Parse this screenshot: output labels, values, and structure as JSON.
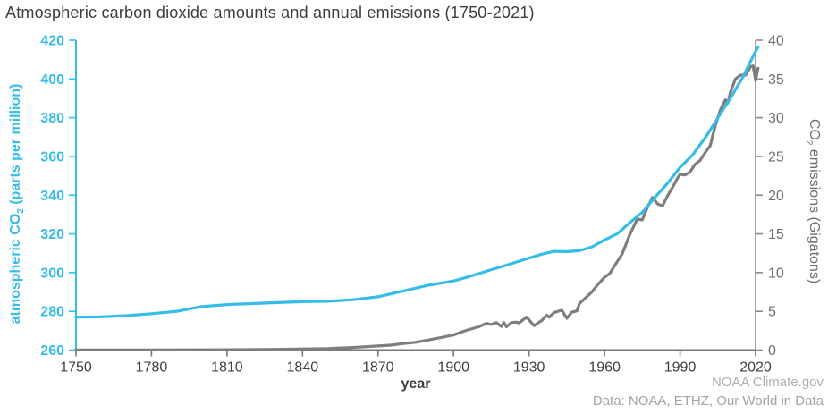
{
  "title": "Atmospheric carbon dioxide amounts and annual emissions (1750-2021)",
  "footer": {
    "source1": "NOAA Climate.gov",
    "source2": "Data: NOAA, ETHZ, Our World in Data"
  },
  "colors": {
    "cyan": "#35bce8",
    "gray_line": "#7e7e7e",
    "right_axis": "#8a8a8a",
    "bottom_axis": "#777777",
    "right_tick_text": "#6e6e6e",
    "x_tick_text": "#3f3f3f",
    "title_text": "#3d3d3d",
    "footer_text": "#aeaeae"
  },
  "chart_data": {
    "type": "line",
    "title": "Atmospheric carbon dioxide amounts and annual emissions (1750-2021)",
    "xlabel": "year",
    "grid": false,
    "legend": "none",
    "x_axis": {
      "ticks": [
        1750,
        1780,
        1810,
        1840,
        1870,
        1900,
        1930,
        1960,
        1990,
        2020
      ],
      "range": [
        1750,
        2021
      ]
    },
    "left_axis": {
      "label_prefix": "atmospheric CO",
      "label_sub": "2",
      "label_suffix": " (parts per million)",
      "ticks": [
        260,
        280,
        300,
        320,
        340,
        360,
        380,
        400,
        420
      ],
      "range": [
        260,
        420
      ]
    },
    "right_axis": {
      "label_prefix": "CO",
      "label_sub": "2",
      "label_suffix": " emissions (Gigatons)",
      "ticks": [
        0,
        5,
        10,
        15,
        20,
        25,
        30,
        35,
        40
      ],
      "range": [
        0,
        40
      ]
    },
    "series": [
      {
        "name": "co2_emissions_gigatons",
        "axis": "right",
        "color": "#7e7e7e",
        "points": [
          [
            1750,
            0.01
          ],
          [
            1775,
            0.02
          ],
          [
            1800,
            0.03
          ],
          [
            1825,
            0.07
          ],
          [
            1850,
            0.2
          ],
          [
            1860,
            0.34
          ],
          [
            1870,
            0.53
          ],
          [
            1875,
            0.64
          ],
          [
            1880,
            0.84
          ],
          [
            1885,
            1.0
          ],
          [
            1890,
            1.3
          ],
          [
            1895,
            1.6
          ],
          [
            1900,
            1.95
          ],
          [
            1905,
            2.54
          ],
          [
            1910,
            3.0
          ],
          [
            1913,
            3.45
          ],
          [
            1915,
            3.3
          ],
          [
            1917,
            3.55
          ],
          [
            1919,
            3.05
          ],
          [
            1920,
            3.55
          ],
          [
            1921,
            3.0
          ],
          [
            1923,
            3.55
          ],
          [
            1925,
            3.6
          ],
          [
            1926,
            3.5
          ],
          [
            1929,
            4.25
          ],
          [
            1932,
            3.15
          ],
          [
            1935,
            3.8
          ],
          [
            1937,
            4.5
          ],
          [
            1938,
            4.25
          ],
          [
            1940,
            4.85
          ],
          [
            1943,
            5.15
          ],
          [
            1945,
            4.1
          ],
          [
            1947,
            4.9
          ],
          [
            1949,
            5.05
          ],
          [
            1950,
            6.0
          ],
          [
            1952,
            6.6
          ],
          [
            1955,
            7.5
          ],
          [
            1957,
            8.35
          ],
          [
            1960,
            9.4
          ],
          [
            1962,
            9.85
          ],
          [
            1965,
            11.4
          ],
          [
            1967,
            12.4
          ],
          [
            1970,
            14.9
          ],
          [
            1973,
            16.9
          ],
          [
            1975,
            16.8
          ],
          [
            1977,
            18.4
          ],
          [
            1979,
            19.7
          ],
          [
            1981,
            18.9
          ],
          [
            1983,
            18.6
          ],
          [
            1985,
            19.9
          ],
          [
            1987,
            21.0
          ],
          [
            1989,
            22.2
          ],
          [
            1990,
            22.7
          ],
          [
            1992,
            22.6
          ],
          [
            1994,
            23.0
          ],
          [
            1996,
            24.0
          ],
          [
            1998,
            24.5
          ],
          [
            2000,
            25.5
          ],
          [
            2002,
            26.4
          ],
          [
            2004,
            29.0
          ],
          [
            2006,
            31.0
          ],
          [
            2008,
            32.3
          ],
          [
            2009,
            31.9
          ],
          [
            2010,
            33.3
          ],
          [
            2012,
            35.0
          ],
          [
            2014,
            35.5
          ],
          [
            2016,
            35.5
          ],
          [
            2018,
            36.6
          ],
          [
            2019,
            36.7
          ],
          [
            2020,
            34.8
          ],
          [
            2021,
            36.4
          ]
        ]
      },
      {
        "name": "atmospheric_co2_ppm",
        "axis": "left",
        "color": "#35bce8",
        "points": [
          [
            1750,
            277
          ],
          [
            1760,
            277.2
          ],
          [
            1770,
            277.8
          ],
          [
            1780,
            278.8
          ],
          [
            1790,
            280
          ],
          [
            1800,
            282.5
          ],
          [
            1810,
            283.5
          ],
          [
            1820,
            284
          ],
          [
            1830,
            284.5
          ],
          [
            1840,
            285
          ],
          [
            1850,
            285.2
          ],
          [
            1860,
            286
          ],
          [
            1870,
            287.5
          ],
          [
            1880,
            290.5
          ],
          [
            1890,
            293.5
          ],
          [
            1900,
            295.7
          ],
          [
            1905,
            297.5
          ],
          [
            1910,
            299.5
          ],
          [
            1915,
            301.5
          ],
          [
            1920,
            303.4
          ],
          [
            1925,
            305.5
          ],
          [
            1930,
            307.5
          ],
          [
            1935,
            309.5
          ],
          [
            1940,
            311
          ],
          [
            1945,
            310.8
          ],
          [
            1950,
            311.3
          ],
          [
            1955,
            313.3
          ],
          [
            1960,
            316.9
          ],
          [
            1965,
            320
          ],
          [
            1970,
            325.7
          ],
          [
            1975,
            331.1
          ],
          [
            1980,
            338.8
          ],
          [
            1985,
            346.1
          ],
          [
            1990,
            354.4
          ],
          [
            1995,
            360.8
          ],
          [
            2000,
            369.6
          ],
          [
            2005,
            379.9
          ],
          [
            2010,
            390.1
          ],
          [
            2015,
            401
          ],
          [
            2019,
            411.7
          ],
          [
            2020,
            414.2
          ],
          [
            2021,
            416.5
          ]
        ]
      }
    ]
  }
}
